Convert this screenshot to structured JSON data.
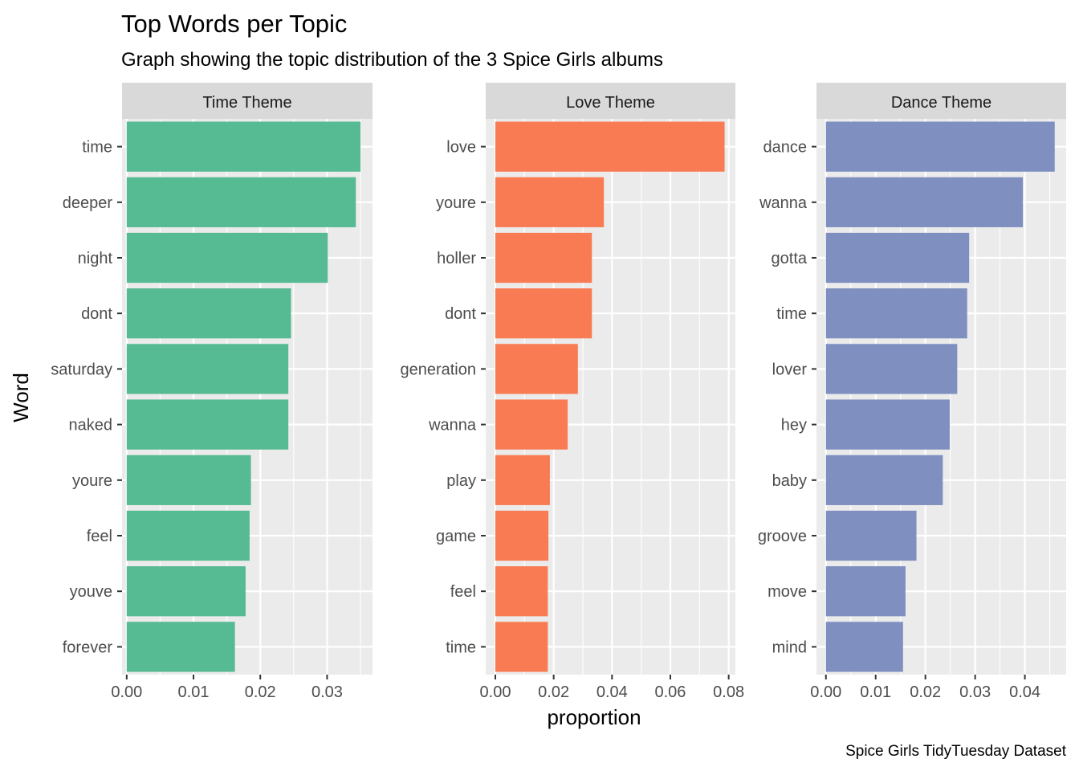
{
  "title": "Top Words per Topic",
  "subtitle": "Graph showing the topic distribution of the 3 Spice Girls albums",
  "caption": "Spice Girls TidyTuesday Dataset",
  "chart_data": {
    "type": "bar",
    "orientation": "horizontal",
    "facets": "free scales, one panel per topic",
    "xlabel": "proportion",
    "ylabel": "Word",
    "grid": true,
    "legend": "none",
    "panels": [
      {
        "strip": "Time Theme",
        "color": "#56BA93",
        "xlim": [
          -0.0007,
          0.0368
        ],
        "x_ticks": [
          0.0,
          0.01,
          0.02,
          0.03
        ],
        "x_tick_labels": [
          "0.00",
          "0.01",
          "0.02",
          "0.03"
        ],
        "categories": [
          "time",
          "deeper",
          "night",
          "dont",
          "saturday",
          "naked",
          "youre",
          "feel",
          "youve",
          "forever"
        ],
        "values": [
          0.035,
          0.0343,
          0.0301,
          0.0246,
          0.0242,
          0.0242,
          0.0186,
          0.0184,
          0.0178,
          0.0162
        ]
      },
      {
        "strip": "Love Theme",
        "color": "#F97B53",
        "xlim": [
          -0.0033,
          0.0823
        ],
        "x_ticks": [
          0.0,
          0.02,
          0.04,
          0.06,
          0.08
        ],
        "x_tick_labels": [
          "0.00",
          "0.02",
          "0.04",
          "0.06",
          "0.08"
        ],
        "categories": [
          "love",
          "youre",
          "holler",
          "dont",
          "generation",
          "wanna",
          "play",
          "game",
          "feel",
          "time"
        ],
        "values": [
          0.0786,
          0.0372,
          0.0331,
          0.0331,
          0.0283,
          0.0248,
          0.0187,
          0.0182,
          0.018,
          0.018
        ]
      },
      {
        "strip": "Dance Theme",
        "color": "#7F8FC0",
        "xlim": [
          -0.0019,
          0.0483
        ],
        "x_ticks": [
          0.0,
          0.01,
          0.02,
          0.03,
          0.04
        ],
        "x_tick_labels": [
          "0.00",
          "0.01",
          "0.02",
          "0.03",
          "0.04"
        ],
        "categories": [
          "dance",
          "wanna",
          "gotta",
          "time",
          "lover",
          "hey",
          "baby",
          "groove",
          "move",
          "mind"
        ],
        "values": [
          0.046,
          0.0396,
          0.0288,
          0.0284,
          0.0264,
          0.0249,
          0.0235,
          0.0182,
          0.016,
          0.0155
        ]
      }
    ]
  }
}
